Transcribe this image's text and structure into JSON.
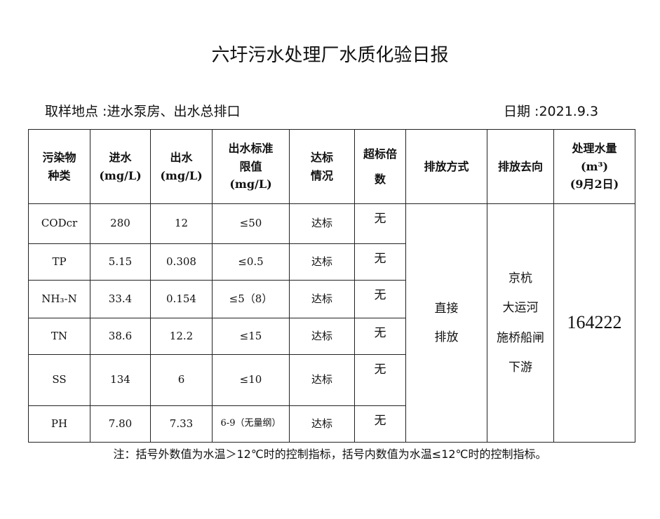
{
  "title": "六圩污水处理厂水质化验日报",
  "location": "取样地点 :进水泵房、出水总排口",
  "date": "日期 :2021.9.3",
  "headers": {
    "pollutant": [
      "污染物",
      "种类"
    ],
    "inflow": [
      "进水",
      "(mg/L)"
    ],
    "outflow": [
      "出水",
      "(mg/L)"
    ],
    "limit": [
      "出水标准",
      "限值",
      "(mg/L)"
    ],
    "status": [
      "达标",
      "情况"
    ],
    "exceed": [
      "超标倍",
      "数"
    ],
    "discharge_mode": "排放方式",
    "discharge_dest": "排放去向",
    "volume": [
      "处理水量",
      "(m³)",
      "(9月2日)"
    ]
  },
  "rows": [
    {
      "name": "CODcr",
      "inflow": "280",
      "outflow": "12",
      "limit": "≤50",
      "status": "达标",
      "exceed": "无"
    },
    {
      "name": "TP",
      "inflow": "5.15",
      "outflow": "0.308",
      "limit": "≤0.5",
      "status": "达标",
      "exceed": "无"
    },
    {
      "name": "NH₃-N",
      "inflow": "33.4",
      "outflow": "0.154",
      "limit": "≤5（8）",
      "status": "达标",
      "exceed": "无"
    },
    {
      "name": "TN",
      "inflow": "38.6",
      "outflow": "12.2",
      "limit": "≤15",
      "status": "达标",
      "exceed": "无"
    },
    {
      "name": "SS",
      "inflow": "134",
      "outflow": "6",
      "limit": "≤10",
      "status": "达标",
      "exceed": "无"
    },
    {
      "name": "PH",
      "inflow": "7.80",
      "outflow": "7.33",
      "limit": "6-9（无量纲）",
      "status": "达标",
      "exceed": "无"
    }
  ],
  "discharge_mode": [
    "直接",
    "排放"
  ],
  "discharge_dest": [
    "京杭",
    "大运河",
    "施桥船闸",
    "下游"
  ],
  "volume": "164222",
  "note": "注：括号外数值为水温＞12℃时的控制指标，括号内数值为水温≤12℃时的控制指标。"
}
